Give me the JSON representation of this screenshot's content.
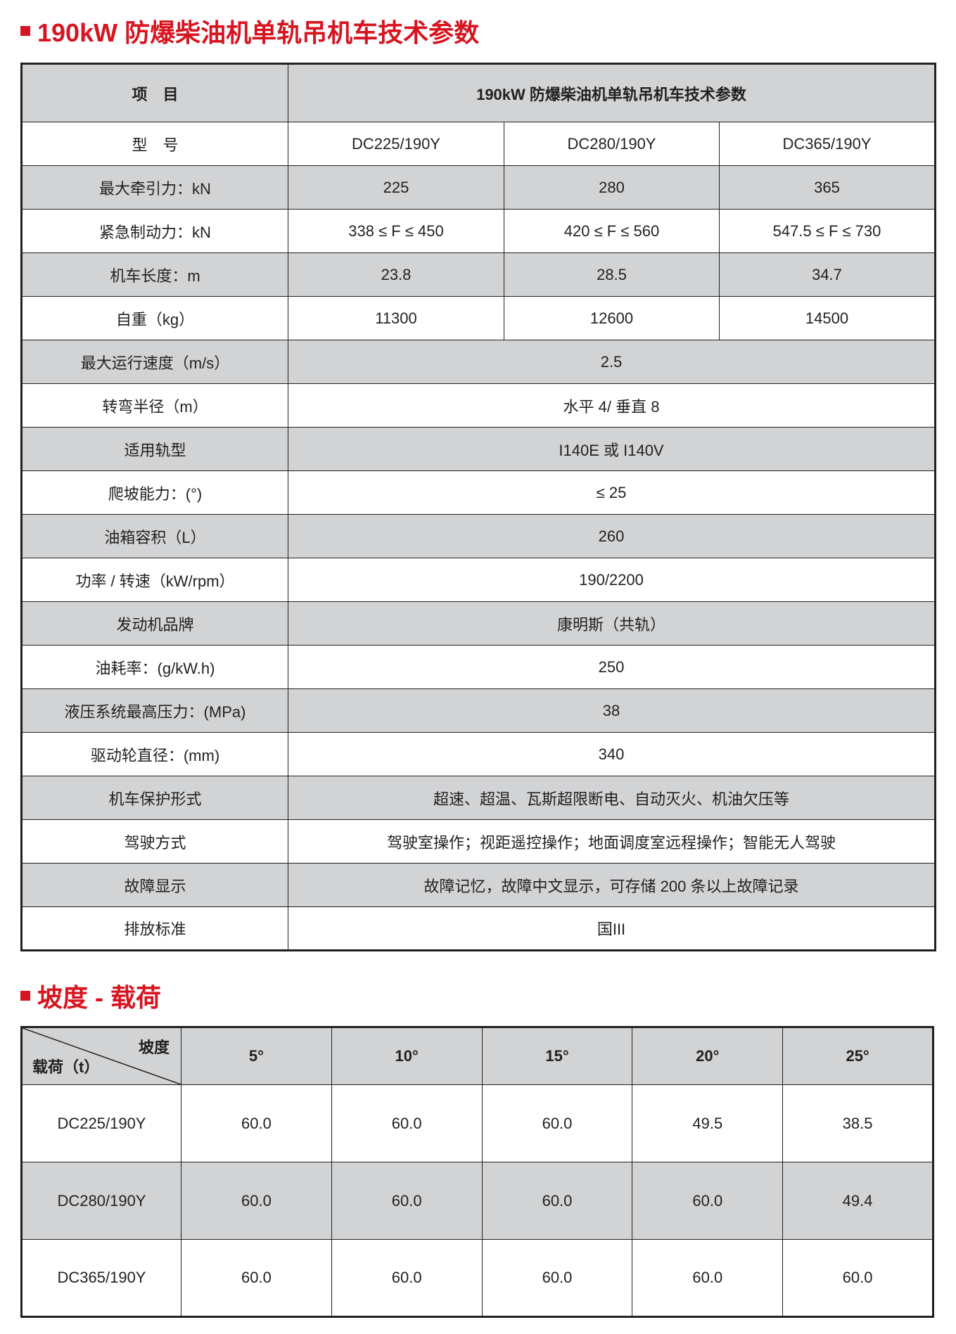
{
  "accent_color": "#d7141f",
  "header_bg": "#d1d3d4",
  "section1": {
    "title": "190kW 防爆柴油机单轨吊机车技术参数",
    "header": {
      "item": "项　目",
      "params": "190kW 防爆柴油机单轨吊机车技术参数"
    },
    "rows": [
      {
        "label": "型　号",
        "values": [
          "DC225/190Y",
          "DC280/190Y",
          "DC365/190Y"
        ]
      },
      {
        "label": "最大牵引力：kN",
        "values": [
          "225",
          "280",
          "365"
        ]
      },
      {
        "label": "紧急制动力：kN",
        "values": [
          "338 ≤ F ≤ 450",
          "420 ≤ F ≤ 560",
          "547.5 ≤ F ≤ 730"
        ]
      },
      {
        "label": "机车长度：m",
        "values": [
          "23.8",
          "28.5",
          "34.7"
        ]
      },
      {
        "label": "自重（kg）",
        "values": [
          "11300",
          "12600",
          "14500"
        ]
      },
      {
        "label": "最大运行速度（m/s）",
        "value": "2.5"
      },
      {
        "label": "转弯半径（m）",
        "value": "水平 4/ 垂直 8"
      },
      {
        "label": "适用轨型",
        "value": "I140E 或 I140V"
      },
      {
        "label": "爬坡能力：(°)",
        "value": "≤ 25"
      },
      {
        "label": "油箱容积（L）",
        "value": "260"
      },
      {
        "label": "功率 / 转速（kW/rpm）",
        "value": "190/2200"
      },
      {
        "label": "发动机品牌",
        "value": "康明斯（共轨）"
      },
      {
        "label": "油耗率：(g/kW.h)",
        "value": "250"
      },
      {
        "label": "液压系统最高压力：(MPa)",
        "value": "38"
      },
      {
        "label": "驱动轮直径：(mm)",
        "value": "340"
      },
      {
        "label": "机车保护形式",
        "value": "超速、超温、瓦斯超限断电、自动灭火、机油欠压等"
      },
      {
        "label": "驾驶方式",
        "value": "驾驶室操作；视距遥控操作；地面调度室远程操作；智能无人驾驶"
      },
      {
        "label": "故障显示",
        "value": "故障记忆，故障中文显示，可存储 200 条以上故障记录"
      },
      {
        "label": "排放标准",
        "value": "国III"
      }
    ]
  },
  "section2": {
    "title": "坡度 - 载荷",
    "corner_top": "坡度",
    "corner_bottom": "载荷（t）",
    "grades": [
      "5°",
      "10°",
      "15°",
      "20°",
      "25°"
    ],
    "rows": [
      {
        "model": "DC225/190Y",
        "values": [
          "60.0",
          "60.0",
          "60.0",
          "49.5",
          "38.5"
        ]
      },
      {
        "model": "DC280/190Y",
        "values": [
          "60.0",
          "60.0",
          "60.0",
          "60.0",
          "49.4"
        ]
      },
      {
        "model": "DC365/190Y",
        "values": [
          "60.0",
          "60.0",
          "60.0",
          "60.0",
          "60.0"
        ]
      }
    ]
  }
}
